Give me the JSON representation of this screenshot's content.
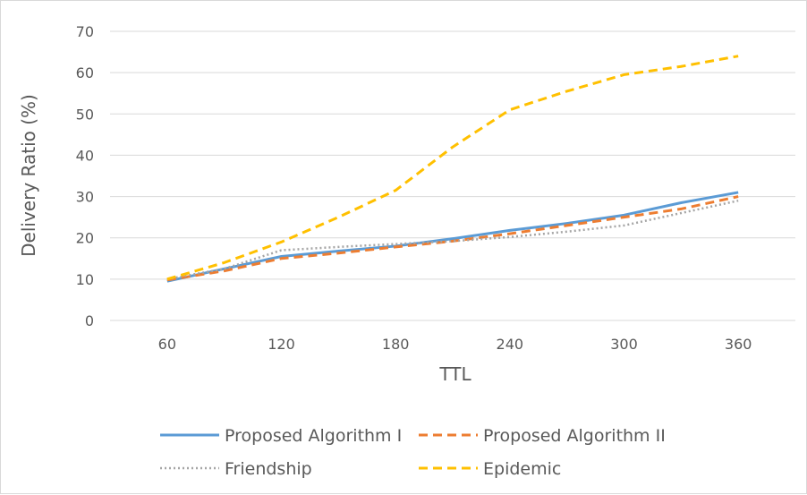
{
  "chart_data": {
    "type": "line",
    "categories": [
      "60",
      "120",
      "180",
      "240",
      "300",
      "360"
    ],
    "x": [
      60,
      120,
      180,
      240,
      300,
      360
    ],
    "xlabel": "TTL",
    "ylabel": "Delivery Ratio (%)",
    "ylim": [
      0,
      70
    ],
    "yticks": [
      0,
      10,
      20,
      30,
      40,
      50,
      60,
      70
    ],
    "grid": "horizontal",
    "legend_position": "bottom",
    "series": [
      {
        "name": "Proposed Algorithm I",
        "color": "#5b9bd5",
        "style": "solid",
        "x": [
          60,
          90,
          120,
          150,
          180,
          210,
          240,
          270,
          300,
          330,
          360
        ],
        "values": [
          9.5,
          12.5,
          15.5,
          16.8,
          18,
          19.8,
          21.8,
          23.5,
          25.5,
          28.5,
          31
        ]
      },
      {
        "name": "Proposed Algorithm II",
        "color": "#ed7d31",
        "style": "dashed",
        "x": [
          60,
          90,
          120,
          150,
          180,
          210,
          240,
          270,
          300,
          330,
          360
        ],
        "values": [
          9.8,
          12,
          15,
          16.3,
          17.8,
          19.2,
          21,
          23,
          25,
          27,
          30
        ]
      },
      {
        "name": "Friendship",
        "color": "#a5a5a5",
        "style": "dotted",
        "x": [
          60,
          90,
          120,
          150,
          180,
          210,
          240,
          270,
          300,
          330,
          360
        ],
        "values": [
          10,
          12.5,
          17,
          17.8,
          18.5,
          19.2,
          20.2,
          21.5,
          23,
          26,
          29
        ]
      },
      {
        "name": "Epidemic",
        "color": "#ffc000",
        "style": "dashed",
        "x": [
          60,
          90,
          120,
          150,
          180,
          210,
          240,
          270,
          300,
          330,
          360
        ],
        "values": [
          10,
          14,
          19,
          25,
          31.5,
          42,
          51,
          55.5,
          59.5,
          61.5,
          64
        ]
      }
    ]
  }
}
